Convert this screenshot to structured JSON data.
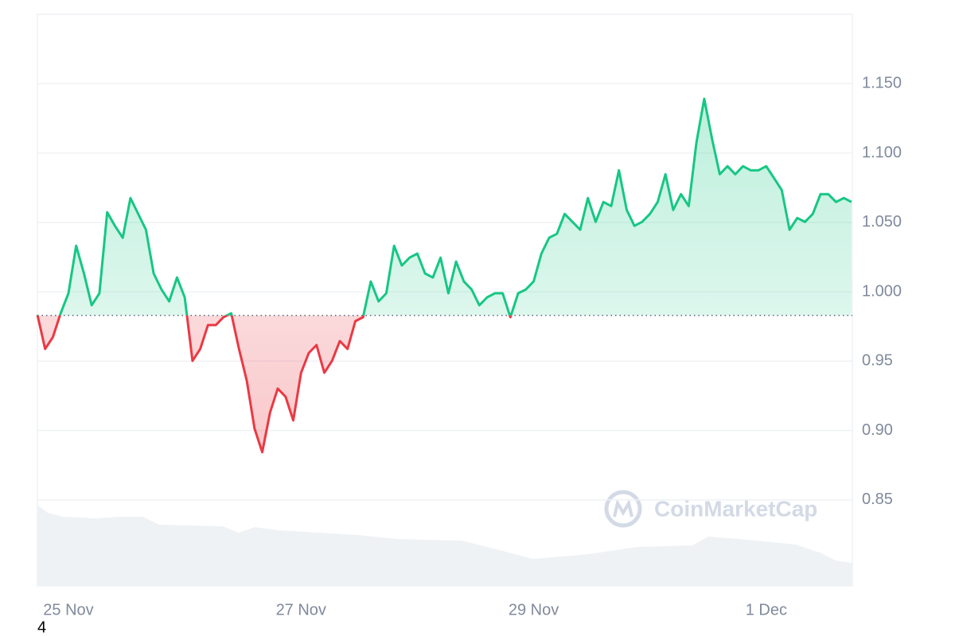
{
  "chart_data": {
    "type": "line",
    "values": [
      0.9834,
      0.9588,
      0.9674,
      0.9845,
      0.9989,
      1.0332,
      1.0132,
      0.9903,
      0.9989,
      1.0573,
      1.0475,
      1.0389,
      1.0676,
      1.0561,
      1.0447,
      1.0132,
      1.0017,
      0.9931,
      1.0103,
      0.996,
      0.9502,
      0.9588,
      0.976,
      0.976,
      0.9817,
      0.9845,
      0.9588,
      0.9359,
      0.9015,
      0.8844,
      0.913,
      0.9302,
      0.9244,
      0.9073,
      0.9416,
      0.9559,
      0.9616,
      0.9416,
      0.9502,
      0.9645,
      0.9588,
      0.9788,
      0.9817,
      1.0074,
      0.9931,
      0.9989,
      1.0332,
      1.0189,
      1.0246,
      1.0275,
      1.0132,
      1.0103,
      1.0246,
      0.9989,
      1.0218,
      1.0074,
      1.0017,
      0.9903,
      0.996,
      0.9989,
      0.9989,
      0.9817,
      0.9989,
      1.0017,
      1.0074,
      1.0275,
      1.0389,
      1.0418,
      1.0561,
      1.0504,
      1.0447,
      1.0676,
      1.0504,
      1.0647,
      1.0618,
      1.0876,
      1.059,
      1.0475,
      1.0504,
      1.0561,
      1.0647,
      1.0847,
      1.059,
      1.0704,
      1.0618,
      1.1076,
      1.1391,
      1.1105,
      1.0847,
      1.0905,
      1.0847,
      1.0905,
      1.0876,
      1.0876,
      1.0905,
      1.0819,
      1.0733,
      1.0447,
      1.0532,
      1.0504,
      1.0561,
      1.0704,
      1.0704,
      1.0647,
      1.0676,
      1.0647
    ],
    "baseline": 0.983,
    "color_up": "#16c784",
    "color_down": "#ea3943",
    "ylim": [
      0.788,
      1.2
    ],
    "yticks": [
      0.85,
      {
        "value": 0.9,
        "label": "0.90"
      },
      0.95,
      {
        "value": 1.0,
        "label": "1.000"
      },
      {
        "value": 1.05,
        "label": "1.050"
      },
      {
        "value": 1.1,
        "label": "1.100"
      },
      {
        "value": 1.15,
        "label": "1.150"
      }
    ],
    "xticks": [
      {
        "value": 4,
        "label": "25 Nov"
      },
      {
        "value": 34,
        "label": "27 Nov"
      },
      {
        "value": 64,
        "label": "29 Nov"
      },
      {
        "value": 94,
        "label": "1 Dec"
      }
    ],
    "grid": true,
    "watermark": "CoinMarketCap"
  },
  "footer_text": "4"
}
